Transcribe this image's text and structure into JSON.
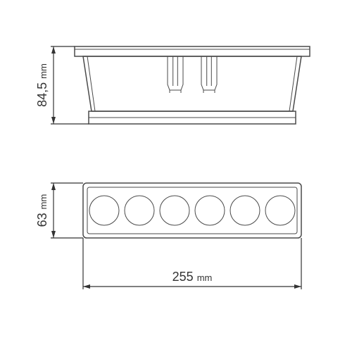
{
  "drawing": {
    "type": "engineering-dimension-drawing",
    "background": "#ffffff",
    "stroke_color": "#4a4a4a",
    "dim_color": "#333333",
    "font_family": "Arial",
    "label_fontsize_pt": 14,
    "unit_fontsize_pt": 10,
    "dimensions": {
      "width": {
        "value": "255",
        "unit": "mm"
      },
      "height": {
        "value": "84,5",
        "unit": "mm"
      },
      "depth": {
        "value": "63",
        "unit": "mm"
      }
    },
    "front_view": {
      "hole_count": 6,
      "hole_shape": "circle"
    },
    "arrow": {
      "len": 10,
      "half": 3
    }
  }
}
